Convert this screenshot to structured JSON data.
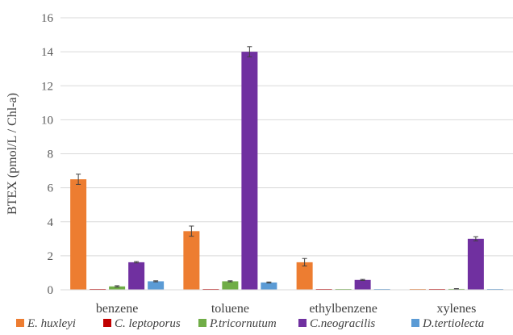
{
  "chart_data": {
    "type": "bar",
    "title": "",
    "xlabel": "",
    "ylabel": "BTEX (pmol/L / Chl-a)",
    "ylim": [
      0,
      16
    ],
    "yticks": [
      0,
      2,
      4,
      6,
      8,
      10,
      12,
      14,
      16
    ],
    "grid": true,
    "legend_position": "bottom",
    "categories": [
      "benzene",
      "toluene",
      "ethylbenzene",
      "xylenes"
    ],
    "series": [
      {
        "name": "E. huxleyi",
        "color": "#ED7D31",
        "values": [
          6.5,
          3.45,
          1.62,
          0.0
        ],
        "errors": [
          0.3,
          0.3,
          0.22,
          0.0
        ]
      },
      {
        "name": "C. leptoporus",
        "color": "#C00000",
        "values": [
          0.03,
          0.03,
          0.03,
          0.03
        ],
        "errors": [
          0.0,
          0.0,
          0.0,
          0.0
        ]
      },
      {
        "name": "P.tricornutum",
        "color": "#70AD47",
        "values": [
          0.2,
          0.5,
          0.0,
          0.05
        ],
        "errors": [
          0.04,
          0.03,
          0.0,
          0.02
        ]
      },
      {
        "name": "C.neogracilis",
        "color": "#7030A0",
        "values": [
          1.62,
          14.0,
          0.58,
          3.0
        ],
        "errors": [
          0.04,
          0.3,
          0.03,
          0.12
        ]
      },
      {
        "name": "D.tertiolecta",
        "color": "#5B9BD5",
        "values": [
          0.5,
          0.43,
          0.03,
          0.03
        ],
        "errors": [
          0.03,
          0.03,
          0.0,
          0.0
        ]
      }
    ]
  }
}
